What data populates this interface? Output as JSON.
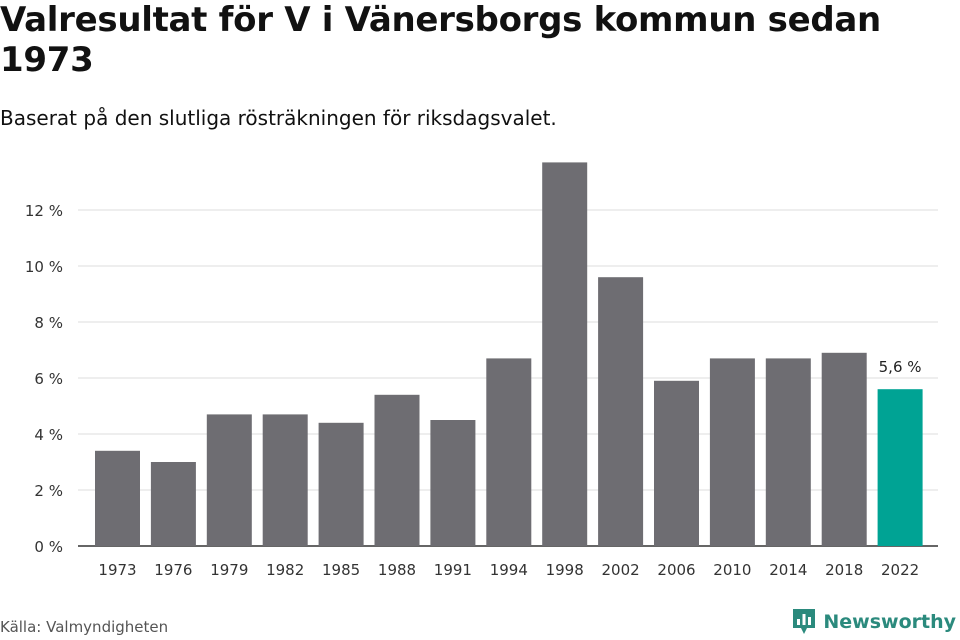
{
  "title": "Valresultat för V i Vänersborgs kommun sedan 1973",
  "subtitle": "Baserat på den slutliga rösträkningen för riksdagsvalet.",
  "source": "Källa: Valmyndigheten",
  "brand": "Newsworthy",
  "colors": {
    "bar": "#6e6d72",
    "highlight": "#00a394",
    "grid": "#dddddd",
    "axis": "#333333",
    "brand": "#2b8a7d"
  },
  "chart_data": {
    "type": "bar",
    "categories": [
      "1973",
      "1976",
      "1979",
      "1982",
      "1985",
      "1988",
      "1991",
      "1994",
      "1998",
      "2002",
      "2006",
      "2010",
      "2014",
      "2018",
      "2022"
    ],
    "values": [
      3.4,
      3.0,
      4.7,
      4.7,
      4.4,
      5.4,
      4.5,
      6.7,
      13.7,
      9.6,
      5.9,
      6.7,
      6.7,
      6.9,
      5.6
    ],
    "ylim": [
      0,
      14
    ],
    "yticks": [
      0,
      2,
      4,
      6,
      8,
      10,
      12
    ],
    "ytick_labels": [
      "0 %",
      "2 %",
      "4 %",
      "6 %",
      "8 %",
      "10 %",
      "12 %"
    ],
    "highlight_index": 14,
    "annotation": "5,6 %",
    "grid": true,
    "legend": "none"
  }
}
